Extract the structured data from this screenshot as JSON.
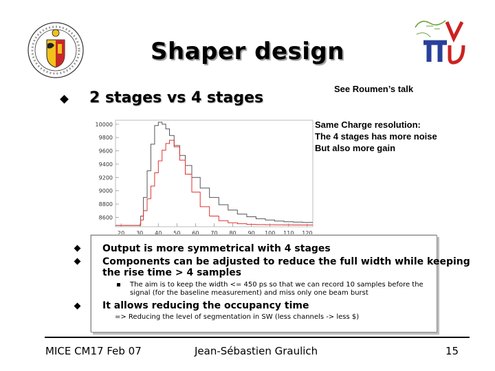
{
  "slide": {
    "title": "Shaper design",
    "heading": "2 stages vs 4 stages",
    "reference": "See Roumen’s talk",
    "notes": [
      "Same Charge resolution:",
      "The 4 stages has more noise",
      "But also more gain"
    ],
    "box": {
      "bullet1": "Output is more symmetrical with 4 stages",
      "bullet2_line1": "Components can be adjusted to reduce the full width while keeping",
      "bullet2_line2": "the rise time > 4 samples",
      "sub_line1": "The aim is to keep the width <= 450 ps so that we can record 10 samples before the",
      "sub_line2": "signal (for the baseline measurement) and miss only one beam burst",
      "bullet3": "It allows reducing the occupancy time",
      "sub_note": "=> Reducing the level of segmentation in SW (less channels -> less $)"
    },
    "footer": {
      "left": "MICE CM17 Feb 07",
      "center": "Jean-Sébastien Graulich",
      "page": "15"
    }
  },
  "colors": {
    "series_gray": "#555555",
    "series_red": "#e03030",
    "logo_green": "#6a9e3a",
    "logo_red": "#cc2222",
    "logo_blue": "#2a3f9a"
  },
  "chart_data": {
    "type": "line",
    "x_ticks": [
      20,
      30,
      40,
      50,
      60,
      70,
      80,
      90,
      100,
      110,
      120
    ],
    "y_ticks": [
      8600,
      8800,
      9000,
      9200,
      9400,
      9600,
      9800,
      10000
    ],
    "xlim": [
      17,
      123
    ],
    "ylim": [
      8460,
      10060
    ],
    "series": [
      {
        "color": "#555555",
        "x": [
          17,
          30,
          31,
          33,
          35,
          37,
          39,
          41,
          43,
          45,
          47,
          50,
          53,
          56,
          60,
          65,
          70,
          75,
          80,
          85,
          90,
          95,
          100,
          105,
          110,
          115,
          120,
          123
        ],
        "y": [
          8480,
          8480,
          8620,
          8900,
          9300,
          9700,
          9980,
          10030,
          10000,
          9930,
          9830,
          9680,
          9530,
          9380,
          9200,
          9040,
          8900,
          8790,
          8710,
          8650,
          8610,
          8580,
          8560,
          8545,
          8535,
          8530,
          8525,
          8525
        ]
      },
      {
        "color": "#e03030",
        "x": [
          17,
          30,
          31,
          33,
          35,
          37,
          39,
          41,
          43,
          45,
          47,
          50,
          53,
          56,
          60,
          65,
          70,
          75,
          80,
          85,
          90,
          95,
          100,
          105,
          110,
          115,
          120,
          123
        ],
        "y": [
          8480,
          8480,
          8560,
          8700,
          8880,
          9070,
          9270,
          9450,
          9610,
          9710,
          9760,
          9660,
          9460,
          9250,
          8980,
          8760,
          8620,
          8550,
          8520,
          8505,
          8495,
          8492,
          8490,
          8488,
          8487,
          8486,
          8486,
          8486
        ]
      }
    ]
  }
}
